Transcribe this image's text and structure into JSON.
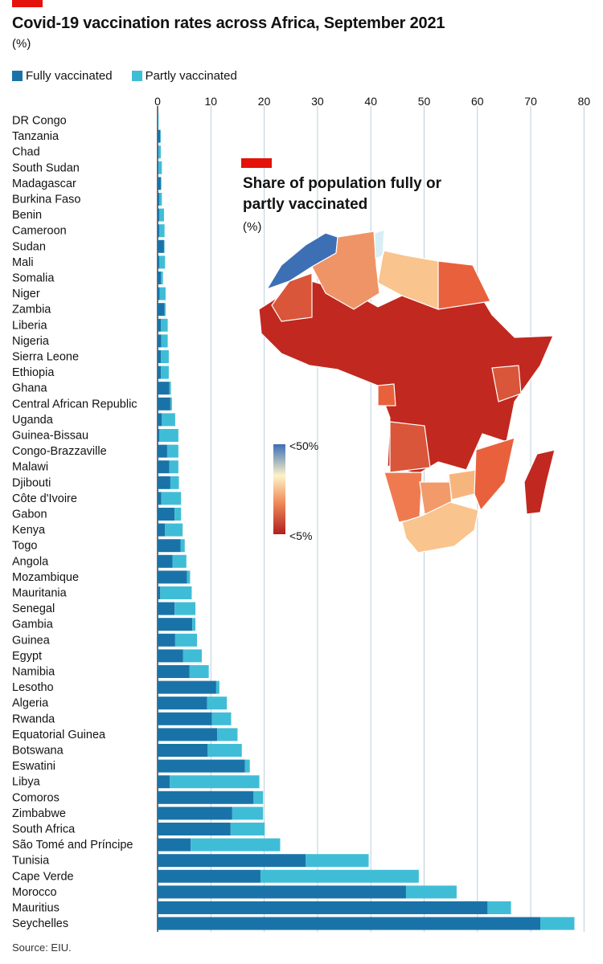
{
  "header": {
    "title": "Covid-19 vaccination rates across Africa, September 2021",
    "unit": "(%)"
  },
  "legend": {
    "fully_label": "Fully vaccinated",
    "partly_label": "Partly vaccinated"
  },
  "colors": {
    "fully": "#1a73a8",
    "partly": "#40bdd6",
    "accent": "#e3120b",
    "grid": "#b9cfdc"
  },
  "chart_data": {
    "type": "bar",
    "orientation": "horizontal",
    "stacked": true,
    "title": "Covid-19 vaccination rates across Africa, September 2021",
    "xlabel": "%",
    "xlim": [
      0,
      80
    ],
    "xticks": [
      0,
      10,
      20,
      30,
      40,
      50,
      60,
      70,
      80
    ],
    "categories": [
      "DR Congo",
      "Tanzania",
      "Chad",
      "South Sudan",
      "Madagascar",
      "Burkina Faso",
      "Benin",
      "Cameroon",
      "Sudan",
      "Mali",
      "Somalia",
      "Niger",
      "Zambia",
      "Liberia",
      "Nigeria",
      "Sierra Leone",
      "Ethiopia",
      "Ghana",
      "Central African Republic",
      "Uganda",
      "Guinea-Bissau",
      "Congo-Brazzaville",
      "Malawi",
      "Djibouti",
      "Côte d'Ivoire",
      "Gabon",
      "Kenya",
      "Togo",
      "Angola",
      "Mozambique",
      "Mauritania",
      "Senegal",
      "Gambia",
      "Guinea",
      "Egypt",
      "Namibia",
      "Lesotho",
      "Algeria",
      "Rwanda",
      "Equatorial Guinea",
      "Botswana",
      "Eswatini",
      "Libya",
      "Comoros",
      "Zimbabwe",
      "South Africa",
      "São Tomé and Príncipe",
      "Tunisia",
      "Cape Verde",
      "Morocco",
      "Mauritius",
      "Seychelles"
    ],
    "series": [
      {
        "name": "Fully vaccinated",
        "values": [
          0.1,
          0.5,
          0.2,
          0.2,
          0.6,
          0.3,
          0.3,
          0.3,
          1.2,
          0.3,
          0.6,
          0.4,
          1.3,
          0.6,
          0.7,
          0.6,
          0.6,
          2.2,
          2.4,
          0.8,
          0.3,
          1.8,
          2.2,
          2.4,
          0.7,
          3.2,
          1.4,
          4.3,
          2.8,
          5.5,
          0.5,
          3.2,
          6.5,
          3.3,
          4.8,
          6.0,
          11.0,
          9.3,
          10.2,
          11.2,
          9.4,
          16.4,
          2.3,
          18.0,
          14.0,
          13.7,
          6.2,
          27.8,
          19.3,
          46.6,
          61.9,
          71.8
        ]
      },
      {
        "name": "Partly vaccinated",
        "values": [
          0.1,
          0.1,
          0.4,
          0.6,
          0.1,
          0.5,
          0.9,
          1.0,
          0.1,
          1.1,
          0.4,
          1.1,
          0.2,
          1.3,
          1.2,
          1.5,
          1.5,
          0.3,
          0.3,
          2.5,
          3.6,
          2.1,
          1.7,
          1.6,
          3.7,
          1.2,
          3.3,
          0.8,
          2.6,
          0.6,
          5.9,
          3.9,
          0.6,
          4.1,
          3.5,
          3.6,
          0.6,
          3.7,
          3.6,
          3.8,
          6.4,
          0.9,
          16.8,
          1.8,
          5.8,
          6.4,
          16.8,
          11.8,
          29.7,
          9.5,
          4.4,
          6.4
        ]
      }
    ]
  },
  "inset_map": {
    "title": "Share of population fully or partly vaccinated",
    "unit": "(%)",
    "scale_high_label": "<50%",
    "scale_low_label": "<5%"
  },
  "source": "Source: EIU."
}
